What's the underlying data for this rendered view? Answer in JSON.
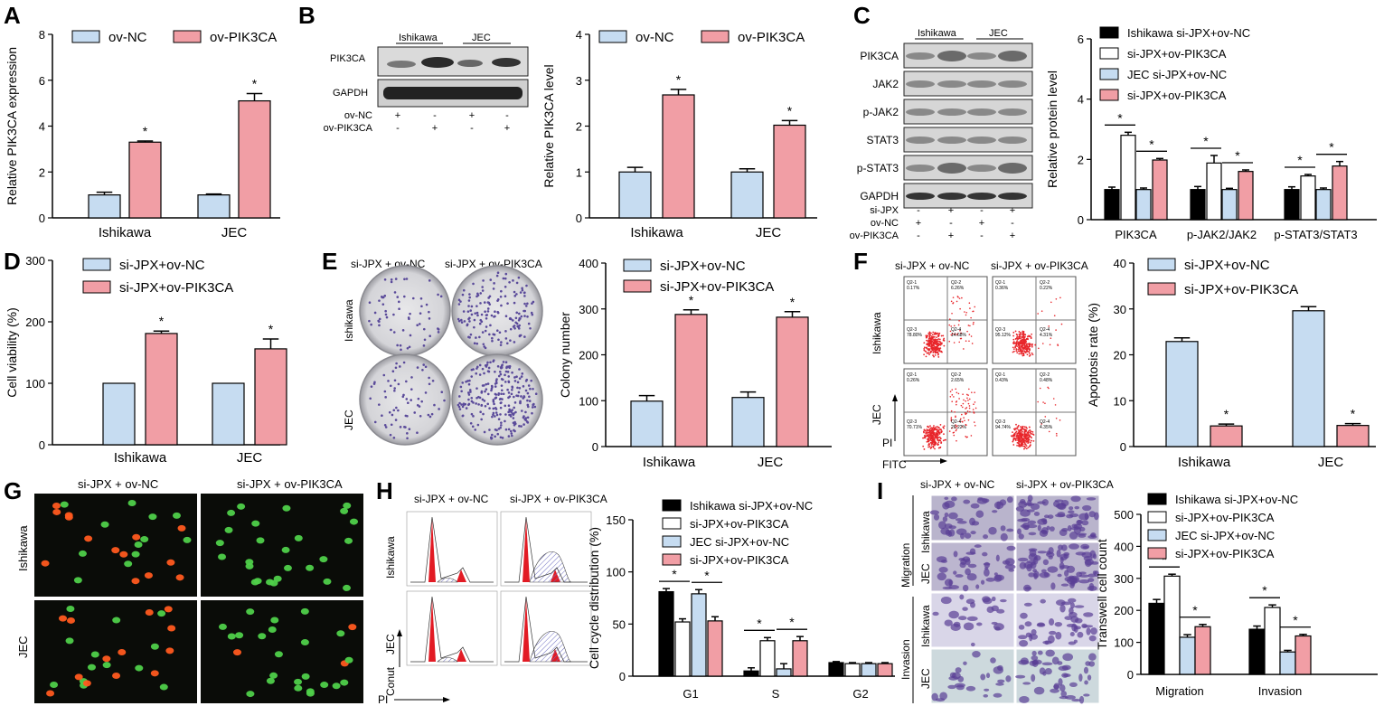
{
  "colors": {
    "blue": "#c6dcf1",
    "red": "#f19ea5",
    "black": "#000000",
    "white": "#ffffff"
  },
  "panels": {
    "A": {
      "label": "A"
    },
    "B": {
      "label": "B",
      "blot_rows": [
        "PIK3CA",
        "GAPDH"
      ],
      "groups": [
        "Ishikawa",
        "JEC"
      ],
      "cond_rows": [
        {
          "name": "ov-NC",
          "signs": [
            "+",
            "-",
            "+",
            "-"
          ]
        },
        {
          "name": "ov-PIK3CA",
          "signs": [
            "-",
            "+",
            "-",
            "+"
          ]
        }
      ]
    },
    "C": {
      "label": "C",
      "blot_rows": [
        "PIK3CA",
        "JAK2",
        "p-JAK2",
        "STAT3",
        "p-STAT3",
        "GAPDH"
      ],
      "groups": [
        "Ishikawa",
        "JEC"
      ],
      "cond_rows": [
        {
          "name": "si-JPX",
          "signs": [
            "-",
            "+",
            "-",
            "+"
          ]
        },
        {
          "name": "ov-NC",
          "signs": [
            "+",
            "-",
            "+",
            "-"
          ]
        },
        {
          "name": "ov-PIK3CA",
          "signs": [
            "-",
            "+",
            "-",
            "+"
          ]
        }
      ]
    },
    "D": {
      "label": "D"
    },
    "E": {
      "label": "E",
      "img_cols": [
        "si-JPX + ov-NC",
        "si-JPX + ov-PIK3CA"
      ],
      "img_rows": [
        "Ishikawa",
        "JEC"
      ]
    },
    "F": {
      "label": "F",
      "img_cols": [
        "si-JPX + ov-NC",
        "si-JPX + ov-PIK3CA"
      ],
      "img_rows": [
        "Ishikawa",
        "JEC"
      ],
      "x_axis": "FITC",
      "y_axis": "PI",
      "quad_values": [
        [
          "0.17%",
          "6.26%",
          "78.80%",
          "14.68%"
        ],
        [
          "0.36%",
          "0.22%",
          "95.12%",
          "4.31%"
        ],
        [
          "0.26%",
          "2.65%",
          "70.71%",
          "26.22%"
        ],
        [
          "0.43%",
          "0.48%",
          "94.74%",
          "4.35%"
        ]
      ],
      "quad_names": [
        "Q2-1",
        "Q2-2",
        "Q2-3",
        "Q2-4"
      ]
    },
    "G": {
      "label": "G",
      "img_cols": [
        "si-JPX + ov-NC",
        "si-JPX + ov-PIK3CA"
      ],
      "img_rows": [
        "Ishikawa",
        "JEC"
      ]
    },
    "H": {
      "label": "H",
      "img_cols": [
        "si-JPX + ov-NC",
        "si-JPX + ov-PIK3CA"
      ],
      "img_rows": [
        "Ishikawa",
        "JEC"
      ],
      "x_axis": "PI",
      "y_axis": "Conut"
    },
    "I": {
      "label": "I",
      "img_cols": [
        "si-JPX + ov-NC",
        "si-JPX + ov-PIK3CA"
      ],
      "row_groups": [
        "Migration",
        "Invasion"
      ],
      "img_rows": [
        "Ishikawa",
        "JEC",
        "Ishikawa",
        "JEC"
      ]
    }
  },
  "chart_data": [
    {
      "id": "A",
      "type": "bar",
      "categories": [
        "Ishikawa",
        "JEC"
      ],
      "ylabel": "Relative PIK3CA expression",
      "ylim": [
        0,
        8
      ],
      "yticks": [
        0,
        2,
        4,
        6,
        8
      ],
      "series": [
        {
          "name": "ov-NC",
          "color": "blue",
          "values": [
            1.0,
            1.0
          ],
          "err": [
            0.12,
            0.04
          ],
          "star": [
            false,
            false
          ]
        },
        {
          "name": "ov-PIK3CA",
          "color": "red",
          "values": [
            3.3,
            5.1
          ],
          "err": [
            0.05,
            0.32
          ],
          "star": [
            true,
            true
          ]
        }
      ]
    },
    {
      "id": "B",
      "type": "bar",
      "categories": [
        "Ishikawa",
        "JEC"
      ],
      "ylabel": "Relative PIK3CA level",
      "ylim": [
        0,
        4
      ],
      "yticks": [
        0,
        1,
        2,
        3,
        4
      ],
      "series": [
        {
          "name": "ov-NC",
          "color": "blue",
          "values": [
            1.0,
            1.0
          ],
          "err": [
            0.1,
            0.07
          ],
          "star": [
            false,
            false
          ]
        },
        {
          "name": "ov-PIK3CA",
          "color": "red",
          "values": [
            2.68,
            2.02
          ],
          "err": [
            0.12,
            0.1
          ],
          "star": [
            true,
            true
          ]
        }
      ]
    },
    {
      "id": "C",
      "type": "bar",
      "categories": [
        "PIK3CA",
        "p-JAK2/JAK2",
        "p-STAT3/STAT3"
      ],
      "ylabel": "Relative protein level",
      "ylim": [
        0,
        6
      ],
      "yticks": [
        0,
        2,
        4,
        6
      ],
      "series": [
        {
          "name": "Ishikawa si-JPX+ov-NC",
          "color": "black",
          "values": [
            1.0,
            1.0,
            1.0
          ],
          "err": [
            0.08,
            0.1,
            0.09
          ],
          "star": [
            false,
            false,
            false
          ]
        },
        {
          "name": "si-JPX+ov-PIK3CA",
          "color": "white",
          "values": [
            2.8,
            1.88,
            1.45
          ],
          "err": [
            0.1,
            0.25,
            0.05
          ],
          "star": [
            false,
            false,
            false
          ]
        },
        {
          "name": "JEC si-JPX+ov-NC",
          "color": "blue",
          "values": [
            1.0,
            1.0,
            1.0
          ],
          "err": [
            0.05,
            0.04,
            0.05
          ],
          "star": [
            false,
            false,
            false
          ]
        },
        {
          "name": "si-JPX+ov-PIK3CA",
          "color": "red",
          "values": [
            1.98,
            1.6,
            1.78
          ],
          "err": [
            0.05,
            0.05,
            0.15
          ],
          "star": [
            false,
            false,
            false
          ]
        }
      ],
      "sig": [
        {
          "cat": 0,
          "pair": [
            0,
            1
          ]
        },
        {
          "cat": 0,
          "pair": [
            2,
            3
          ]
        },
        {
          "cat": 1,
          "pair": [
            0,
            1
          ]
        },
        {
          "cat": 1,
          "pair": [
            2,
            3
          ]
        },
        {
          "cat": 2,
          "pair": [
            0,
            1
          ]
        },
        {
          "cat": 2,
          "pair": [
            2,
            3
          ]
        }
      ]
    },
    {
      "id": "D",
      "type": "bar",
      "categories": [
        "Ishikawa",
        "JEC"
      ],
      "ylabel": "Cell viability (%)",
      "ylim": [
        0,
        300
      ],
      "yticks": [
        0,
        100,
        200,
        300
      ],
      "series": [
        {
          "name": "si-JPX+ov-NC",
          "color": "blue",
          "values": [
            100,
            100
          ],
          "err": [
            0,
            0
          ],
          "star": [
            false,
            false
          ]
        },
        {
          "name": "si-JPX+ov-PIK3CA",
          "color": "red",
          "values": [
            181,
            156
          ],
          "err": [
            4,
            16
          ],
          "star": [
            true,
            true
          ]
        }
      ]
    },
    {
      "id": "E",
      "type": "bar",
      "categories": [
        "Ishikawa",
        "JEC"
      ],
      "ylabel": "Colony number",
      "ylim": [
        0,
        400
      ],
      "yticks": [
        0,
        100,
        200,
        300,
        400
      ],
      "series": [
        {
          "name": "si-JPX+ov-NC",
          "color": "blue",
          "values": [
            99,
            107
          ],
          "err": [
            12,
            12
          ],
          "star": [
            false,
            false
          ]
        },
        {
          "name": "si-JPX+ov-PIK3CA",
          "color": "red",
          "values": [
            288,
            282
          ],
          "err": [
            10,
            12
          ],
          "star": [
            true,
            true
          ]
        }
      ]
    },
    {
      "id": "F",
      "type": "bar",
      "categories": [
        "Ishikawa",
        "JEC"
      ],
      "ylabel": "Apoptosis rate (%)",
      "ylim": [
        0,
        40
      ],
      "yticks": [
        0,
        10,
        20,
        30,
        40
      ],
      "series": [
        {
          "name": "si-JPX+ov-NC",
          "color": "blue",
          "values": [
            22.9,
            29.6
          ],
          "err": [
            0.8,
            0.9
          ],
          "star": [
            false,
            false
          ]
        },
        {
          "name": "si-JPX+ov-PIK3CA",
          "color": "red",
          "values": [
            4.5,
            4.6
          ],
          "err": [
            0.4,
            0.4
          ],
          "star": [
            true,
            true
          ]
        }
      ]
    },
    {
      "id": "H",
      "type": "bar",
      "categories": [
        "G1",
        "S",
        "G2"
      ],
      "ylabel": "Cell cycle distribution (%)",
      "ylim": [
        0,
        150
      ],
      "yticks": [
        0,
        50,
        100,
        150
      ],
      "series": [
        {
          "name": "Ishikawa si-JPX+ov-NC",
          "color": "black",
          "values": [
            81,
            5,
            13
          ],
          "err": [
            3,
            3,
            1
          ],
          "star": [
            false,
            false,
            false
          ]
        },
        {
          "name": "si-JPX+ov-PIK3CA",
          "color": "white",
          "values": [
            52,
            34,
            12
          ],
          "err": [
            3,
            3,
            1
          ],
          "star": [
            false,
            false,
            false
          ]
        },
        {
          "name": "JEC si-JPX+ov-NC",
          "color": "blue",
          "values": [
            79,
            7,
            12
          ],
          "err": [
            4,
            5,
            1
          ],
          "star": [
            false,
            false,
            false
          ]
        },
        {
          "name": "si-JPX+ov-PIK3CA",
          "color": "red",
          "values": [
            53,
            34,
            12
          ],
          "err": [
            4,
            4,
            1
          ],
          "star": [
            false,
            false,
            false
          ]
        }
      ],
      "sig": [
        {
          "cat": 0,
          "pair": [
            0,
            1
          ]
        },
        {
          "cat": 0,
          "pair": [
            2,
            3
          ]
        },
        {
          "cat": 1,
          "pair": [
            0,
            1
          ]
        },
        {
          "cat": 1,
          "pair": [
            2,
            3
          ]
        }
      ]
    },
    {
      "id": "I",
      "type": "bar",
      "categories": [
        "Migration",
        "Invasion"
      ],
      "ylabel": "Transwell cell count",
      "ylim": [
        0,
        500
      ],
      "yticks": [
        0,
        100,
        200,
        300,
        400,
        500
      ],
      "series": [
        {
          "name": "Ishikawa si-JPX+ov-NC",
          "color": "black",
          "values": [
            222,
            141
          ],
          "err": [
            12,
            10
          ],
          "star": [
            false,
            false
          ]
        },
        {
          "name": "si-JPX+ov-PIK3CA",
          "color": "white",
          "values": [
            307,
            209
          ],
          "err": [
            6,
            8
          ],
          "star": [
            false,
            false
          ]
        },
        {
          "name": "JEC si-JPX+ov-NC",
          "color": "blue",
          "values": [
            116,
            70
          ],
          "err": [
            8,
            5
          ],
          "star": [
            false,
            false
          ]
        },
        {
          "name": "si-JPX+ov-PIK3CA",
          "color": "red",
          "values": [
            149,
            120
          ],
          "err": [
            7,
            5
          ],
          "star": [
            false,
            false
          ]
        }
      ],
      "sig": [
        {
          "cat": 0,
          "pair": [
            0,
            1
          ]
        },
        {
          "cat": 0,
          "pair": [
            2,
            3
          ]
        },
        {
          "cat": 1,
          "pair": [
            0,
            1
          ]
        },
        {
          "cat": 1,
          "pair": [
            2,
            3
          ]
        }
      ]
    }
  ]
}
